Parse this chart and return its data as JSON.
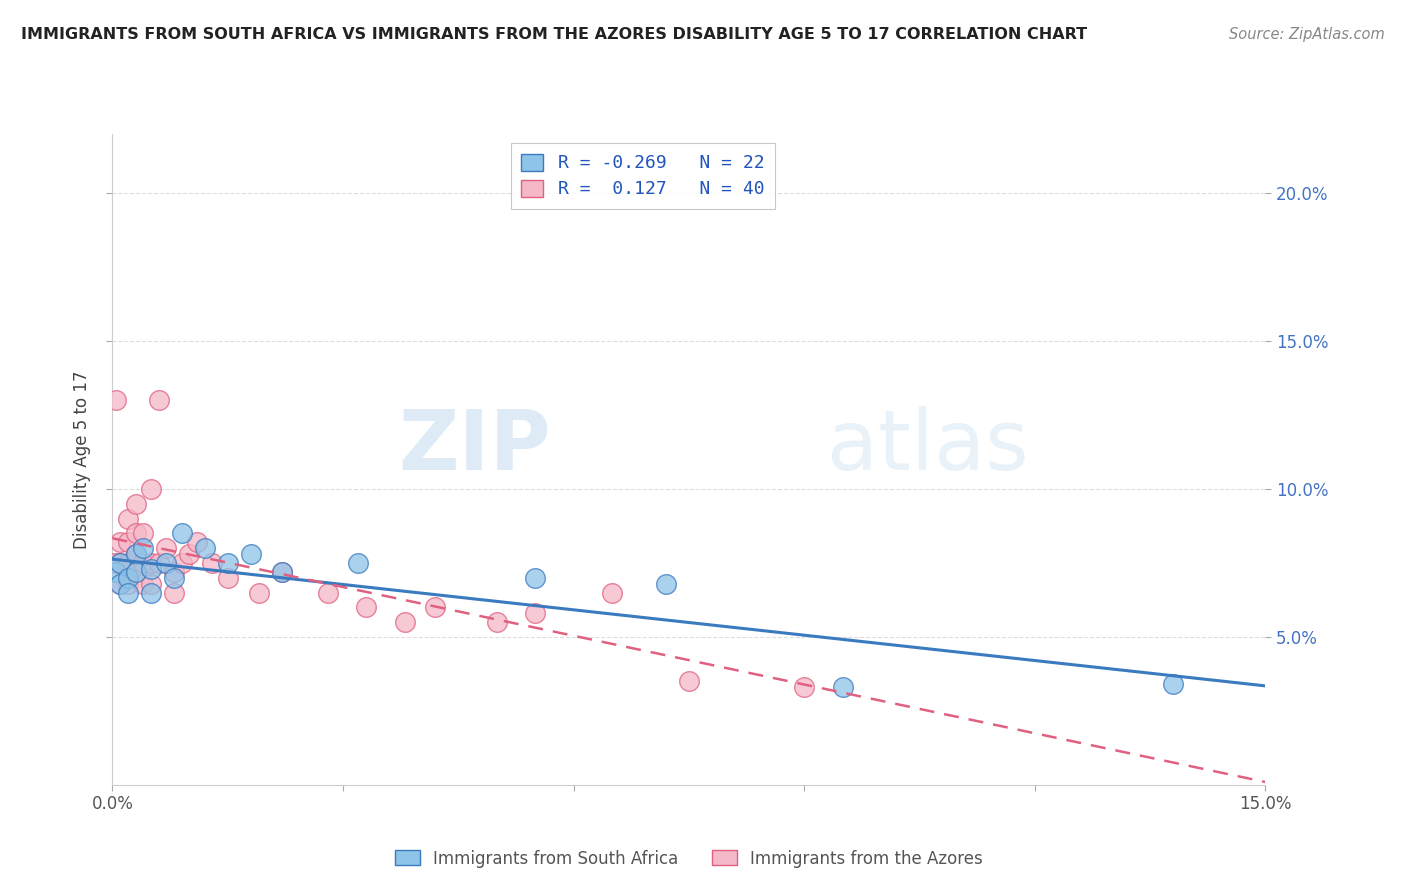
{
  "title": "IMMIGRANTS FROM SOUTH AFRICA VS IMMIGRANTS FROM THE AZORES DISABILITY AGE 5 TO 17 CORRELATION CHART",
  "source": "Source: ZipAtlas.com",
  "ylabel": "Disability Age 5 to 17",
  "legend_label_blue": "Immigrants from South Africa",
  "legend_label_pink": "Immigrants from the Azores",
  "R_blue": -0.269,
  "N_blue": 22,
  "R_pink": 0.127,
  "N_pink": 40,
  "color_blue": "#8ec4e8",
  "color_pink": "#f4b8c8",
  "color_blue_line": "#3a7abf",
  "color_pink_line": "#e06080",
  "xlim": [
    0.0,
    0.15
  ],
  "ylim": [
    0.0,
    0.22
  ],
  "right_yticks": [
    0.05,
    0.1,
    0.15,
    0.2
  ],
  "right_yticklabels": [
    "5.0%",
    "10.0%",
    "15.0%",
    "20.0%"
  ],
  "xticks": [
    0.0,
    0.03,
    0.06,
    0.09,
    0.12,
    0.15
  ],
  "blue_x": [
    0.0005,
    0.001,
    0.001,
    0.002,
    0.002,
    0.003,
    0.003,
    0.004,
    0.005,
    0.005,
    0.007,
    0.008,
    0.009,
    0.012,
    0.015,
    0.018,
    0.022,
    0.032,
    0.055,
    0.072,
    0.095,
    0.138
  ],
  "blue_y": [
    0.072,
    0.075,
    0.068,
    0.07,
    0.065,
    0.078,
    0.072,
    0.08,
    0.073,
    0.065,
    0.075,
    0.07,
    0.085,
    0.08,
    0.075,
    0.078,
    0.072,
    0.075,
    0.07,
    0.068,
    0.033,
    0.034
  ],
  "pink_x": [
    0.0003,
    0.0005,
    0.001,
    0.001,
    0.001,
    0.002,
    0.002,
    0.002,
    0.002,
    0.003,
    0.003,
    0.003,
    0.003,
    0.004,
    0.004,
    0.004,
    0.005,
    0.005,
    0.005,
    0.006,
    0.006,
    0.007,
    0.008,
    0.008,
    0.009,
    0.01,
    0.011,
    0.013,
    0.015,
    0.019,
    0.022,
    0.028,
    0.033,
    0.038,
    0.042,
    0.05,
    0.055,
    0.065,
    0.075,
    0.09
  ],
  "pink_y": [
    0.075,
    0.13,
    0.068,
    0.082,
    0.075,
    0.09,
    0.082,
    0.075,
    0.068,
    0.095,
    0.085,
    0.078,
    0.072,
    0.085,
    0.075,
    0.068,
    0.1,
    0.075,
    0.068,
    0.13,
    0.075,
    0.08,
    0.072,
    0.065,
    0.075,
    0.078,
    0.082,
    0.075,
    0.07,
    0.065,
    0.072,
    0.065,
    0.06,
    0.055,
    0.06,
    0.055,
    0.058,
    0.065,
    0.035,
    0.033
  ],
  "watermark_zip": "ZIP",
  "watermark_atlas": "atlas",
  "background_color": "#ffffff",
  "grid_color": "#dddddd"
}
